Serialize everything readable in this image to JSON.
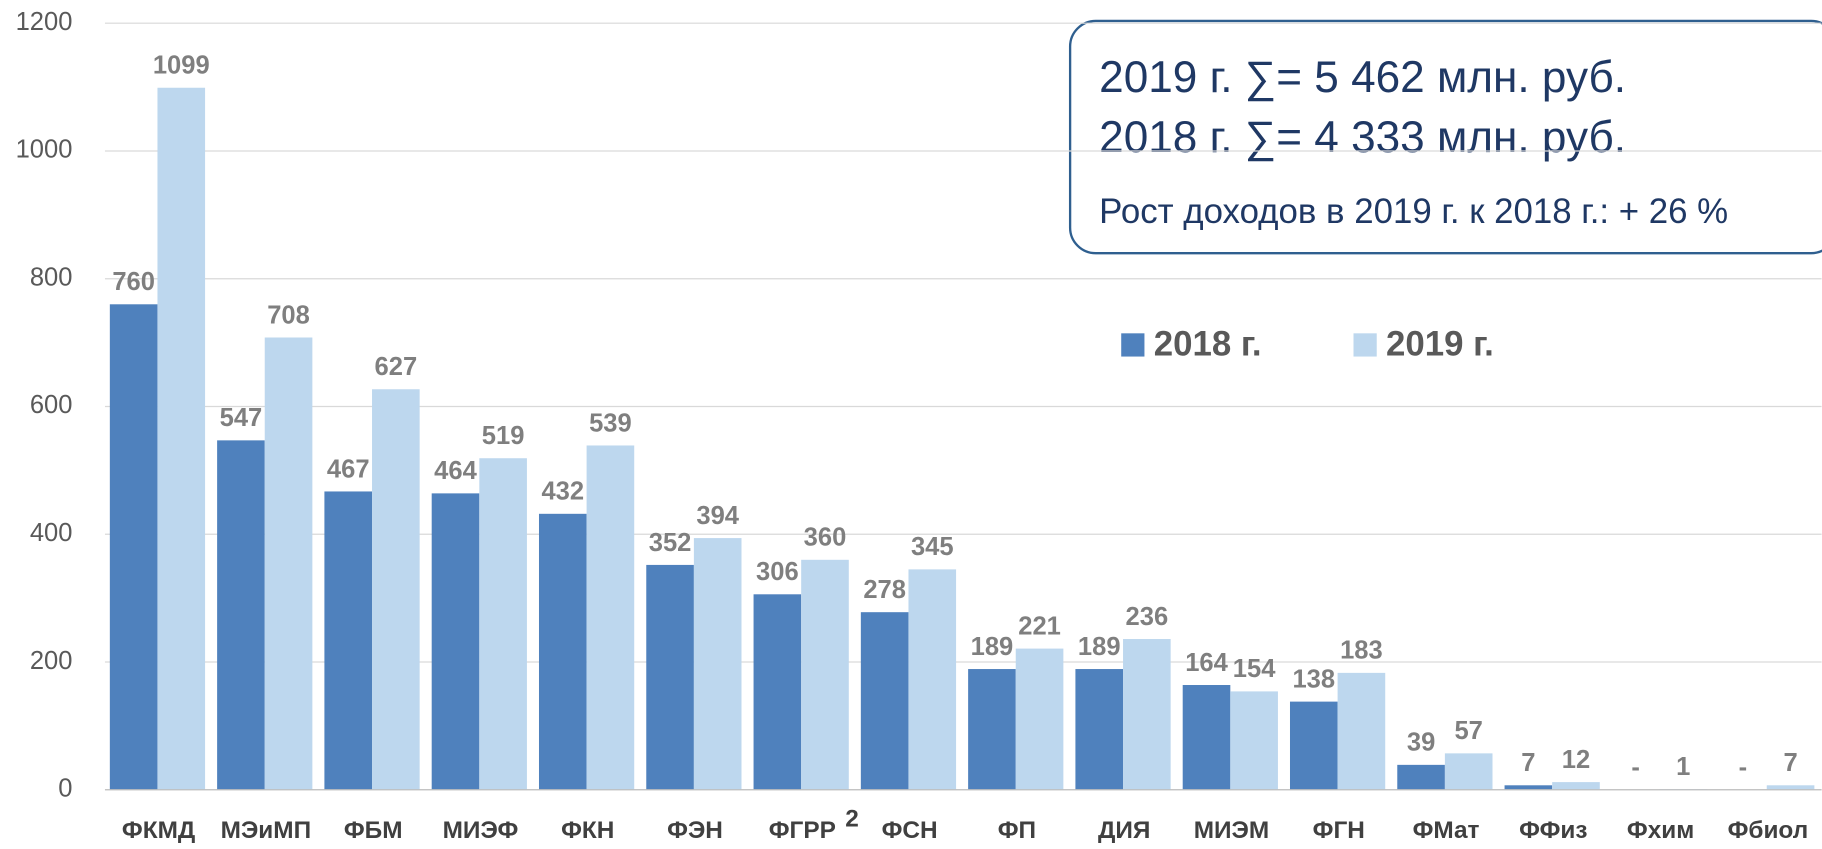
{
  "chart_data": {
    "type": "bar",
    "categories": [
      "ФКМД",
      "МЭиМП",
      "ФБМ",
      "МИЭФ",
      "ФКН",
      "ФЭН",
      "ФГРР",
      "ФСН",
      "ФП",
      "ДИЯ",
      "МИЭМ",
      "ФГН",
      "ФМат",
      "ФФиз",
      "Фхим",
      "Фбиол"
    ],
    "category_superscripts": [
      {
        "category": "ФГРР",
        "text": "2"
      }
    ],
    "series": [
      {
        "name": "2018 г.",
        "color": "#4f81bd",
        "values": [
          760,
          547,
          467,
          464,
          432,
          352,
          306,
          278,
          189,
          189,
          164,
          138,
          39,
          7,
          null,
          null
        ],
        "value_labels": [
          "760",
          "547",
          "467",
          "464",
          "432",
          "352",
          "306",
          "278",
          "189",
          "189",
          "164",
          "138",
          "39",
          "7",
          "-",
          "-"
        ]
      },
      {
        "name": "2019 г.",
        "color": "#bdd7ee",
        "values": [
          1099,
          708,
          627,
          519,
          539,
          394,
          360,
          345,
          221,
          236,
          154,
          183,
          57,
          12,
          1,
          7
        ]
      }
    ],
    "ylim": [
      0,
      1200
    ],
    "yticks": [
      0,
      200,
      400,
      600,
      800,
      1000,
      1200
    ],
    "grid": true,
    "info_box": [
      "2019 г. ∑= 5 462 млн. руб.",
      "2018 г. ∑= 4 333 млн. руб.",
      "Рост доходов в 2019 г. к 2018 г.: + 26 %"
    ]
  }
}
